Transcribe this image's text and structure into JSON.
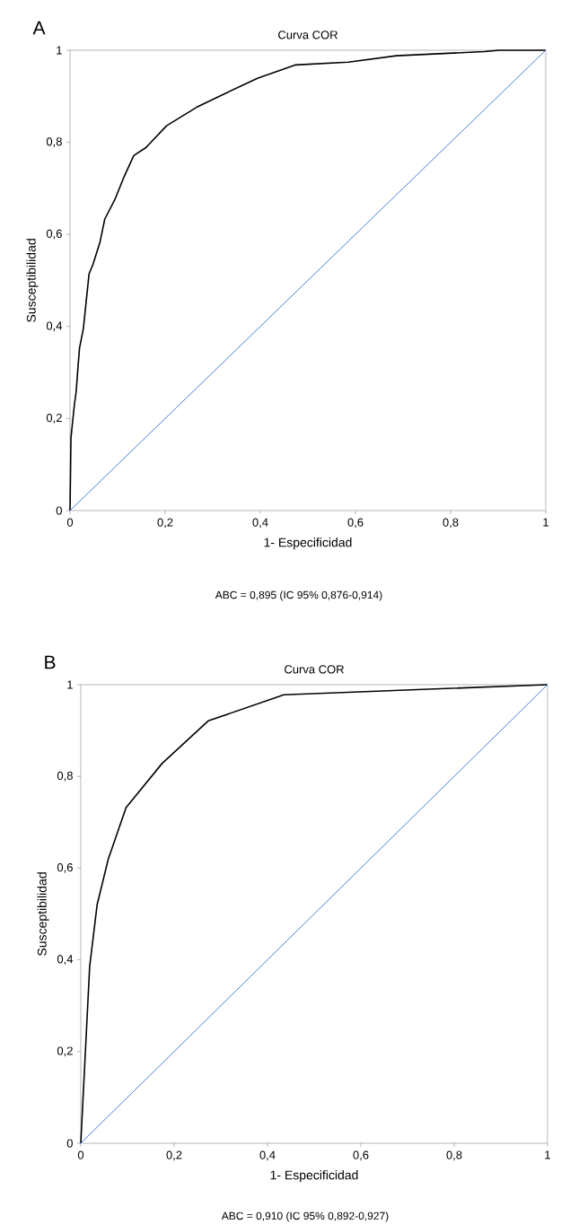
{
  "chart_data": [
    {
      "type": "line",
      "title": "Curva COR",
      "xlabel": "1- Especificidad",
      "ylabel": "Susceptibilidad",
      "annotations": [
        "A",
        "ABC = 0,895 (IC 95% 0,876-0,914)"
      ],
      "xlim": [
        0,
        1
      ],
      "ylim": [
        0,
        1
      ],
      "xticks": [
        0,
        {
          "value": 0.2,
          "label": "0,2"
        },
        {
          "value": 0.4,
          "label": "0,4"
        },
        {
          "value": 0.6,
          "label": "0,6"
        },
        {
          "value": 0.8,
          "label": "0,8"
        },
        1
      ],
      "yticks": [
        0,
        {
          "value": 0.2,
          "label": "0,2"
        },
        {
          "value": 0.4,
          "label": "0,4"
        },
        {
          "value": 0.6,
          "label": "0,6"
        },
        {
          "value": 0.8,
          "label": "0,8"
        },
        1
      ],
      "grid": false,
      "marker": "none",
      "line_style": "solid",
      "series": [
        {
          "color": "#000000",
          "x": [
            0,
            0.002,
            0.009,
            0.013,
            0.017,
            0.02,
            0.028,
            0.04,
            0.048,
            0.063,
            0.073,
            0.094,
            0.114,
            0.134,
            0.16,
            0.203,
            0.266,
            0.322,
            0.394,
            0.473,
            0.585,
            0.686,
            0.871,
            0.902,
            1
          ],
          "values": [
            0,
            0.158,
            0.228,
            0.259,
            0.315,
            0.353,
            0.395,
            0.514,
            0.534,
            0.583,
            0.633,
            0.675,
            0.726,
            0.771,
            0.789,
            0.836,
            0.876,
            0.904,
            0.939,
            0.968,
            0.974,
            0.988,
            0.997,
            1,
            1
          ]
        },
        {
          "color": "#4a7fd4",
          "x": [
            0,
            1
          ],
          "values": [
            0,
            1
          ]
        }
      ]
    },
    {
      "type": "line",
      "title": "Curva COR",
      "xlabel": "1- Especificidad",
      "ylabel": "Susceptibilidad",
      "annotations": [
        "B",
        "ABC = 0,910 (IC 95% 0,892-0,927)"
      ],
      "xlim": [
        0,
        1
      ],
      "ylim": [
        0,
        1
      ],
      "xticks": [
        0,
        {
          "value": 0.2,
          "label": "0,2"
        },
        {
          "value": 0.4,
          "label": "0,4"
        },
        {
          "value": 0.6,
          "label": "0,6"
        },
        {
          "value": 0.8,
          "label": "0,8"
        },
        1
      ],
      "yticks": [
        0,
        {
          "value": 0.2,
          "label": "0,2"
        },
        {
          "value": 0.4,
          "label": "0,4"
        },
        {
          "value": 0.6,
          "label": "0,6"
        },
        {
          "value": 0.8,
          "label": "0,8"
        },
        1
      ],
      "grid": false,
      "marker": "none",
      "line_style": "solid",
      "series": [
        {
          "color": "#000000",
          "x": [
            0,
            0.019,
            0.035,
            0.059,
            0.097,
            0.174,
            0.273,
            0.435,
            1
          ],
          "values": [
            0,
            0.385,
            0.52,
            0.62,
            0.732,
            0.828,
            0.921,
            0.978,
            1
          ]
        },
        {
          "color": "#4a7fd4",
          "x": [
            0,
            1
          ],
          "values": [
            0,
            1
          ]
        }
      ]
    }
  ]
}
